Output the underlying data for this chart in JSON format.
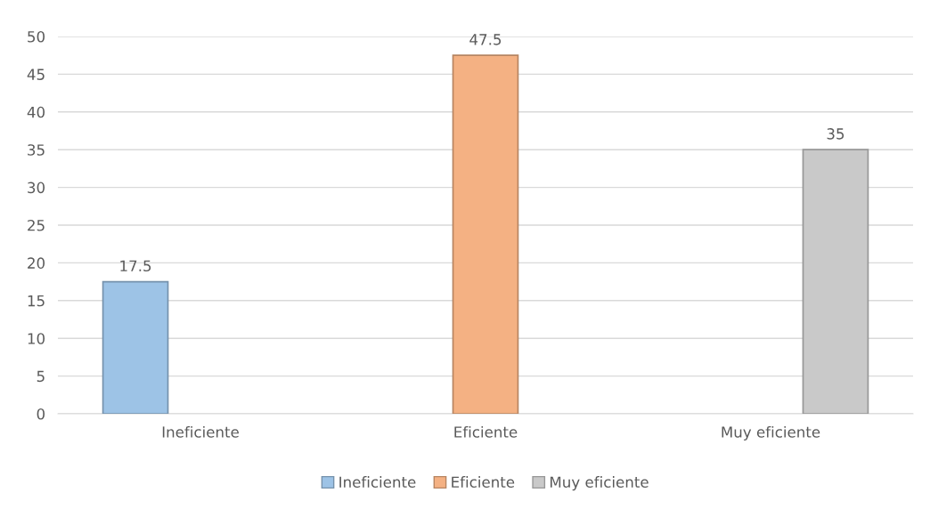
{
  "chart_data": {
    "type": "bar",
    "categories": [
      "Ineficiente",
      "Eficiente",
      "Muy eficiente"
    ],
    "series": [
      {
        "name": "Ineficiente",
        "color": "#9dc3e6",
        "values": [
          17.5,
          null,
          null
        ]
      },
      {
        "name": "Eficiente",
        "color": "#f4b183",
        "values": [
          null,
          47.5,
          null
        ]
      },
      {
        "name": "Muy eficiente",
        "color": "#c9c9c9",
        "values": [
          null,
          null,
          35
        ]
      }
    ],
    "ylim": [
      0,
      50
    ],
    "yticks": [
      0,
      5,
      10,
      15,
      20,
      25,
      30,
      35,
      40,
      45,
      50
    ],
    "grid": "y",
    "legend": "bottom",
    "data_labels": true
  }
}
